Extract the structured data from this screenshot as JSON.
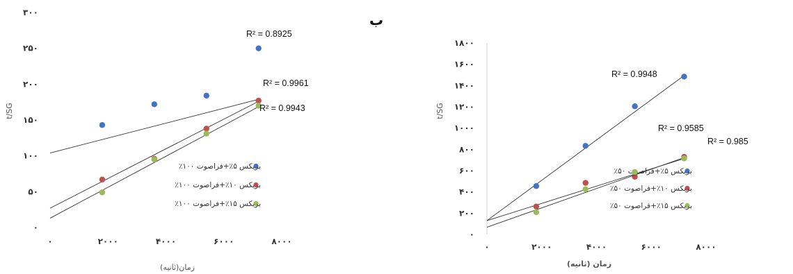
{
  "panel_label": "ب",
  "chart_data": [
    {
      "type": "scatter",
      "title": "",
      "xlabel": "زمان(ثانیه)",
      "ylabel": "t/SG",
      "xlim": [
        0,
        8000
      ],
      "ylim": [
        0,
        300
      ],
      "xticks": [
        "۰",
        "۲۰۰۰",
        "۴۰۰۰",
        "۶۰۰۰",
        "۸۰۰۰"
      ],
      "yticks": [
        "۰",
        "۵۰",
        "۱۰۰",
        "۱۵۰",
        "۲۰۰",
        "۲۵۰",
        "۳۰۰"
      ],
      "legend_position": "right",
      "series": [
        {
          "name": "بریکس ۵٪+فراصوت ۱۰۰٪",
          "color": "#4472C4",
          "x": [
            1800,
            3600,
            5400,
            7200
          ],
          "y": [
            143,
            172,
            184,
            250
          ],
          "trend": {
            "slope": 0.0104,
            "intercept": 104
          },
          "r2_label": "R² = 0.8925"
        },
        {
          "name": "بریکس ۱۰٪+فراصوت ۱۰۰٪",
          "color": "#C0504D",
          "x": [
            1800,
            3600,
            5400,
            7200
          ],
          "y": [
            67,
            96,
            138,
            177
          ],
          "trend": {
            "slope": 0.0207,
            "intercept": 27
          },
          "r2_label": "R² = 0.9961"
        },
        {
          "name": "بریکس ۱۵٪+فراصوت ۱۰۰٪",
          "color": "#9BBB59",
          "x": [
            1800,
            3600,
            5400,
            7200
          ],
          "y": [
            49,
            95,
            131,
            170
          ],
          "trend": {
            "slope": 0.0216,
            "intercept": 13
          },
          "r2_label": "R² = 0.9943"
        }
      ]
    },
    {
      "type": "scatter",
      "title": "",
      "xlabel": "زمان (ثانیه)",
      "ylabel": "t/SG",
      "xlim": [
        0,
        8000
      ],
      "ylim": [
        0,
        1800
      ],
      "xticks": [
        "۰",
        "۲۰۰۰",
        "۴۰۰۰",
        "۶۰۰۰",
        "۸۰۰۰"
      ],
      "yticks": [
        "۰",
        "۲۰۰",
        "۴۰۰",
        "۶۰۰",
        "۸۰۰",
        "۱۰۰۰",
        "۱۲۰۰",
        "۱۴۰۰",
        "۱۶۰۰",
        "۱۸۰۰"
      ],
      "legend_position": "right",
      "series": [
        {
          "name": "بریکس ۵٪+فراصوت ۵۰٪",
          "color": "#4472C4",
          "x": [
            1800,
            3600,
            5400,
            7200
          ],
          "y": [
            455,
            833,
            1205,
            1484
          ],
          "trend": {
            "slope": 0.1895,
            "intercept": 130
          },
          "r2_label": "R² = 0.9948"
        },
        {
          "name": "بریکس ۱۰٪+فراصوت ۵۰٪",
          "color": "#C0504D",
          "x": [
            1800,
            3600,
            5400,
            7200
          ],
          "y": [
            263,
            485,
            543,
            730
          ],
          "trend": {
            "slope": 0.0811,
            "intercept": 130
          },
          "r2_label": "R² = 0.9585"
        },
        {
          "name": "بریکس ۱۵٪+فراصوت ۵۰٪",
          "color": "#9BBB59",
          "x": [
            1800,
            3600,
            5400,
            7200
          ],
          "y": [
            210,
            425,
            587,
            715
          ],
          "trend": {
            "slope": 0.0909,
            "intercept": 68
          },
          "r2_label": "R² = 0.985"
        }
      ]
    }
  ]
}
